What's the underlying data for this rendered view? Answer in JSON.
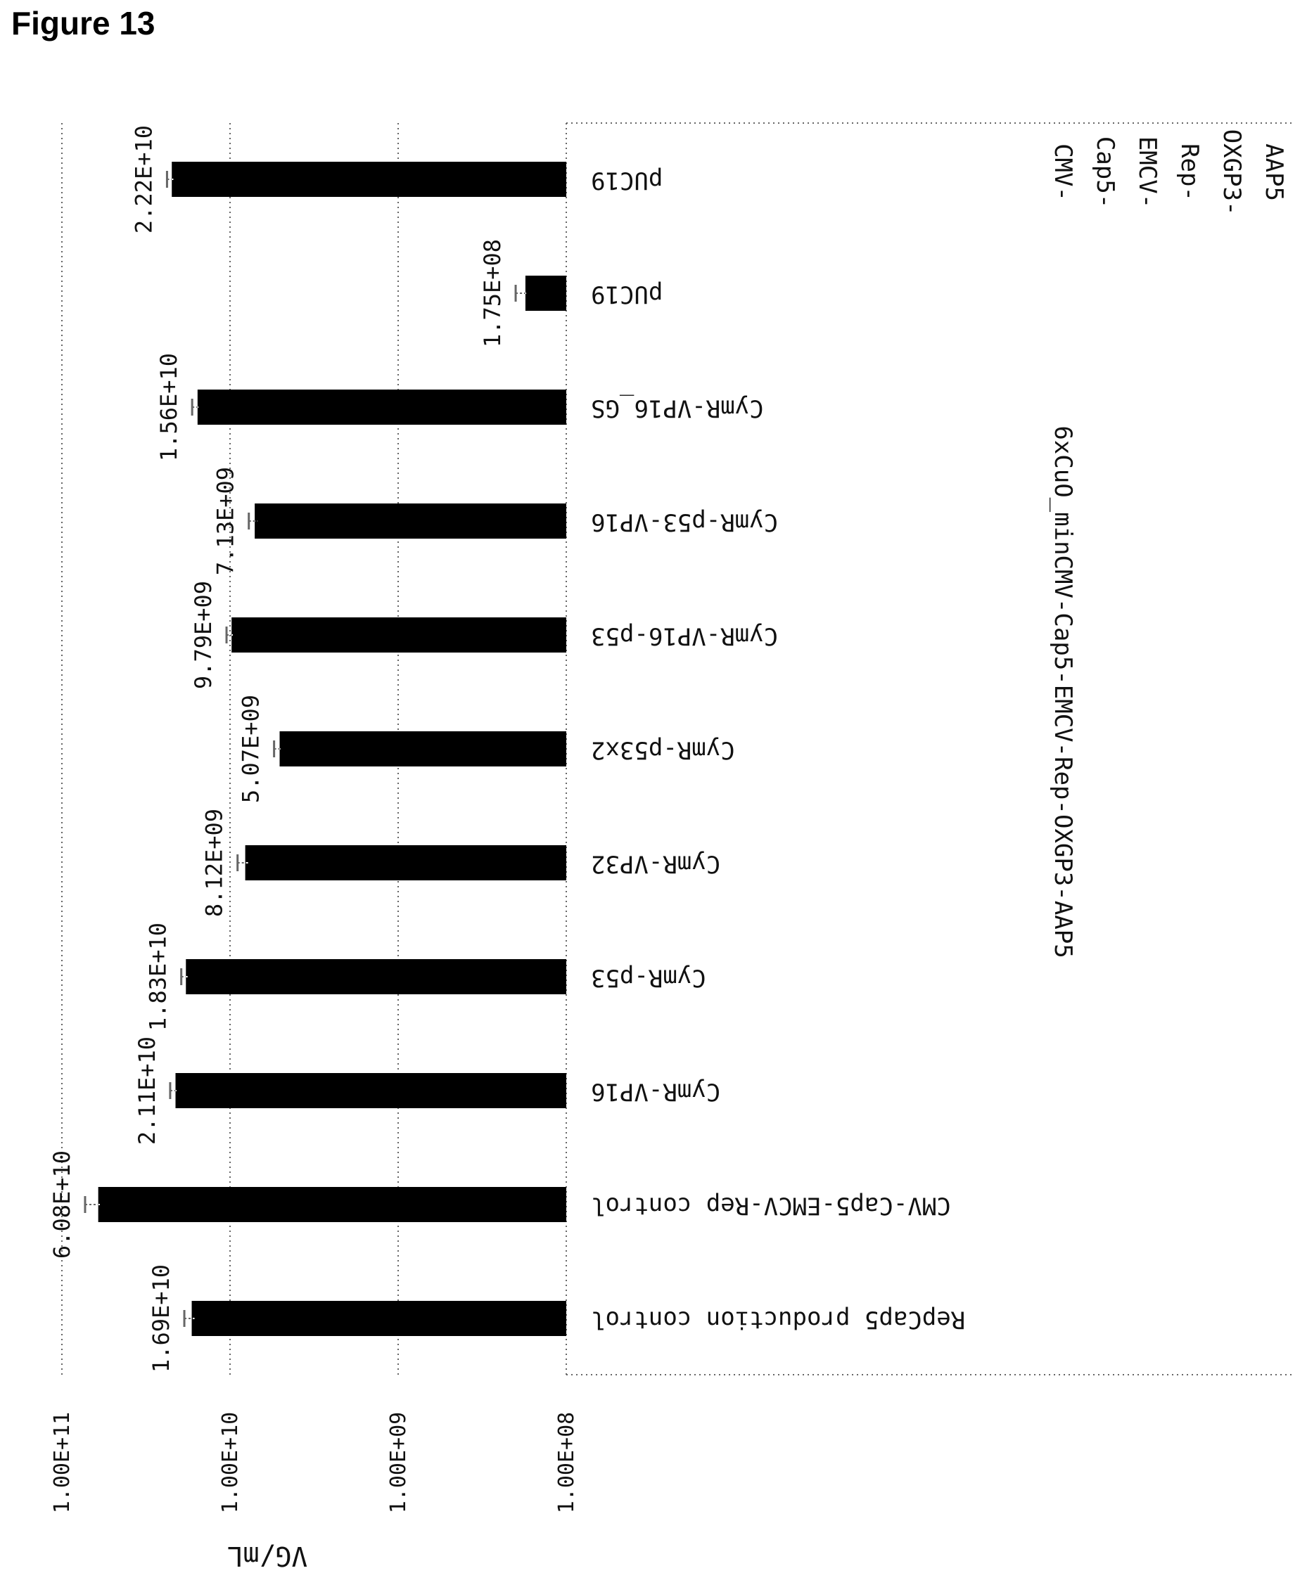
{
  "figure_title": "Figure 13",
  "chart_data": {
    "type": "bar",
    "orientation": "horizontal-rotated",
    "scale": "log",
    "ylabel": "VG/mL",
    "ylim": [
      100000000,
      100000000000
    ],
    "yticks": [
      {
        "value": 100000000000,
        "label": "1.00E+11"
      },
      {
        "value": 10000000000,
        "label": "1.00E+10"
      },
      {
        "value": 1000000000,
        "label": "1.00E+09"
      },
      {
        "value": 100000000,
        "label": "1.00E+08"
      }
    ],
    "gridlines": true,
    "categories": [
      "pUC19",
      "pUC19",
      "CymR-VP16_GS",
      "CymR-p53-VP16",
      "CymR-VP16-p53",
      "CymR-p53x2",
      "CymR-VP32",
      "CymR-p53",
      "CymR-VP16",
      "CMV-Cap5-EMCV-Rep  control",
      "RepCap5 production control"
    ],
    "values": [
      22200000000,
      175000000,
      15600000000,
      7130000000,
      9790000000,
      5070000000,
      8120000000,
      18300000000,
      21100000000,
      60800000000,
      16900000000
    ],
    "value_labels": [
      "2.22E+10",
      "1.75E+08",
      "1.56E+10",
      "7.13E+09",
      "9.79E+09",
      "5.07E+09",
      "8.12E+09",
      "1.83E+10",
      "2.11E+10",
      "6.08E+10",
      "1.69E+10"
    ],
    "error_bars": [
      1500000000,
      25000000,
      1200000000,
      600000000,
      700000000,
      400000000,
      900000000,
      1200000000,
      1600000000,
      12000000000,
      1800000000
    ],
    "groups": [
      {
        "label": "CMV-\nCap5-\nEMCV-\nRep-\nOXGP3-\nAAP5",
        "from": 0,
        "to": 0
      },
      {
        "label": "6xCuO_minCMV-Cap5-EMCV-Rep-OXGP3-AAP5",
        "from": 1,
        "to": 8
      }
    ],
    "colors": {
      "bar": "#000000",
      "grid": "#666666",
      "text": "#111111"
    }
  }
}
